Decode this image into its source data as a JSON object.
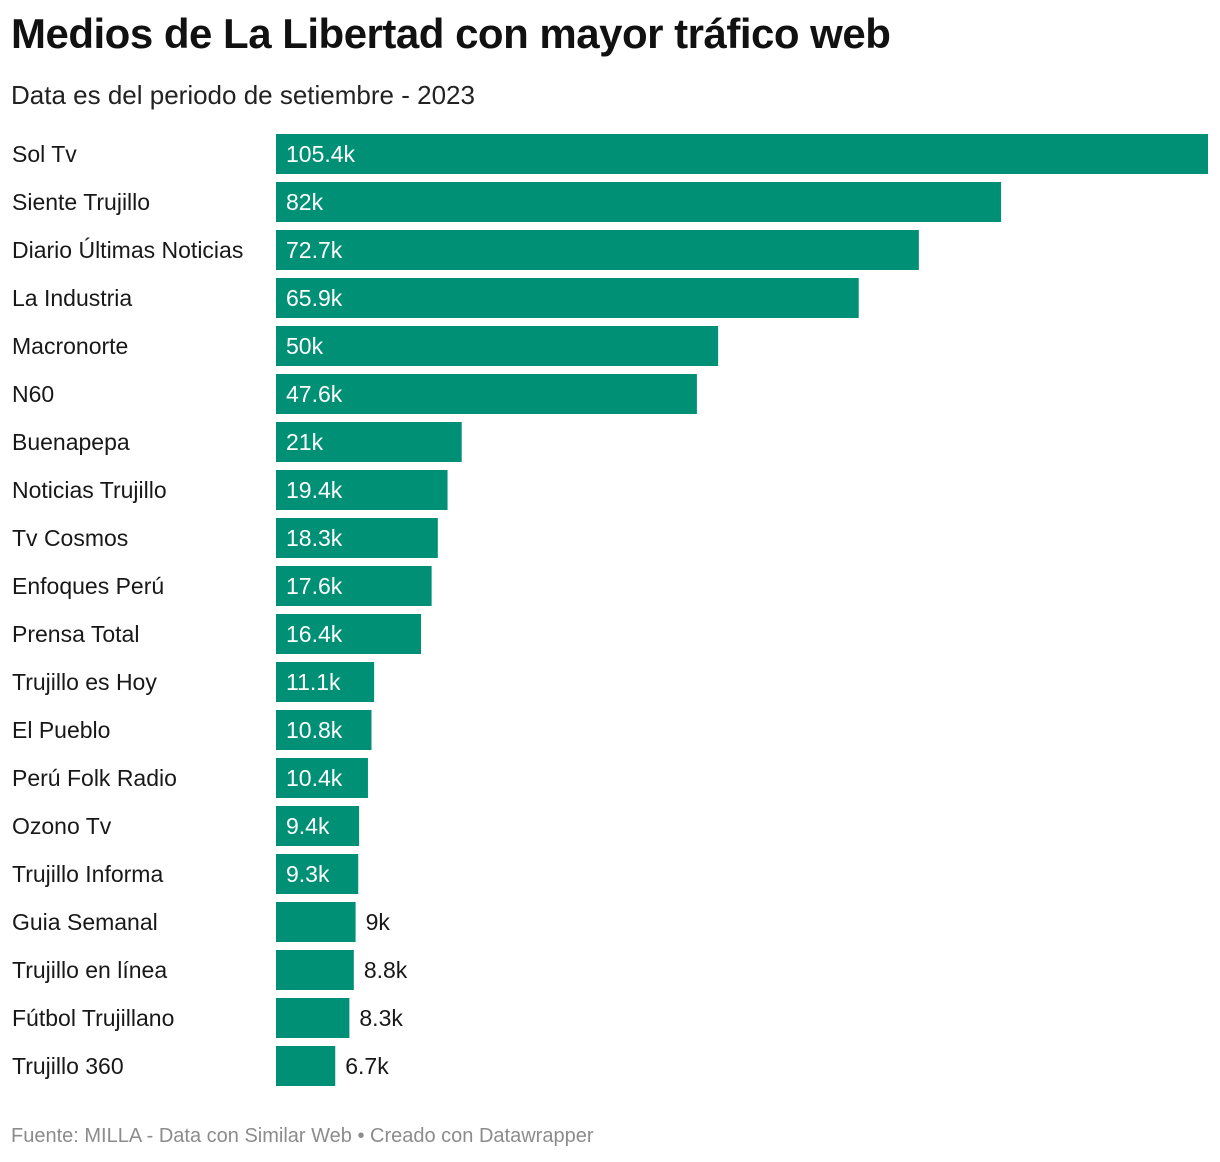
{
  "title": "Medios de La Libertad con mayor tráfico web",
  "subtitle": "Data es del periodo de setiembre - 2023",
  "footer": {
    "source": "Fuente: MILLA - Data con Similar Web",
    "separator": "•",
    "credit": "Creado con Datawrapper"
  },
  "colors": {
    "bar": "#009075",
    "text": "#181818",
    "footer": "#8c8c8c"
  },
  "chart_data": {
    "type": "bar",
    "orientation": "horizontal",
    "title": "Medios de La Libertad con mayor tráfico web",
    "subtitle": "Data es del periodo de setiembre - 2023",
    "xlabel": "",
    "ylabel": "",
    "grid": false,
    "xlim": [
      0,
      105.4
    ],
    "unit_suffix": "k",
    "categories": [
      "Sol Tv",
      "Siente Trujillo",
      "Diario Últimas Noticias",
      "La Industria",
      "Macronorte",
      "N60",
      "Buenapepa",
      "Noticias Trujillo",
      "Tv Cosmos",
      "Enfoques Perú",
      "Prensa Total",
      "Trujillo es Hoy",
      "El Pueblo",
      "Perú Folk Radio",
      "Ozono Tv",
      "Trujillo Informa",
      "Guia Semanal",
      "Trujillo en línea",
      "Fútbol Trujillano",
      "Trujillo 360"
    ],
    "values": [
      105.4,
      82,
      72.7,
      65.9,
      50,
      47.6,
      21,
      19.4,
      18.3,
      17.6,
      16.4,
      11.1,
      10.8,
      10.4,
      9.4,
      9.3,
      9,
      8.8,
      8.3,
      6.7
    ],
    "value_labels": [
      "105.4k",
      "82k",
      "72.7k",
      "65.9k",
      "50k",
      "47.6k",
      "21k",
      "19.4k",
      "18.3k",
      "17.6k",
      "16.4k",
      "11.1k",
      "10.8k",
      "10.4k",
      "9.4k",
      "9.3k",
      "9k",
      "8.8k",
      "8.3k",
      "6.7k"
    ]
  }
}
